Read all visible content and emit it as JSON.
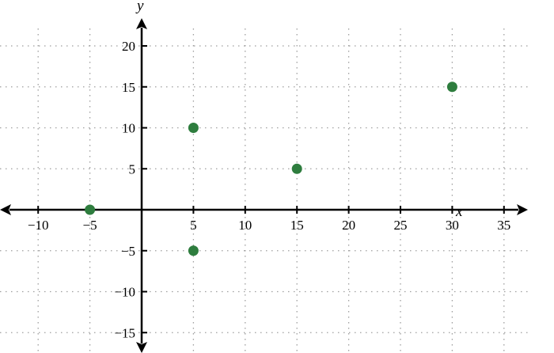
{
  "chart_data": {
    "type": "scatter",
    "title": "",
    "xlabel": "x",
    "ylabel": "y",
    "xlim": [
      -13.7,
      39.5
    ],
    "ylim": [
      -17,
      23
    ],
    "grid": true,
    "x_ticks": [
      -10,
      -5,
      5,
      10,
      15,
      20,
      25,
      30,
      35
    ],
    "y_ticks": [
      -15,
      -10,
      -5,
      5,
      10,
      15,
      20
    ],
    "x_tick_labels": [
      "−10",
      "−5",
      "5",
      "10",
      "15",
      "20",
      "25",
      "30",
      "35"
    ],
    "y_tick_labels": [
      "−15",
      "−10",
      "−5",
      "5",
      "10",
      "15",
      "20"
    ],
    "points": [
      {
        "x": -5,
        "y": 0
      },
      {
        "x": 5,
        "y": 10
      },
      {
        "x": 5,
        "y": -5
      },
      {
        "x": 15,
        "y": 5
      },
      {
        "x": 30,
        "y": 15
      }
    ],
    "point_color": "#2e7d3e",
    "grid_color": "#9e9e9e",
    "axis_color": "#000000"
  }
}
